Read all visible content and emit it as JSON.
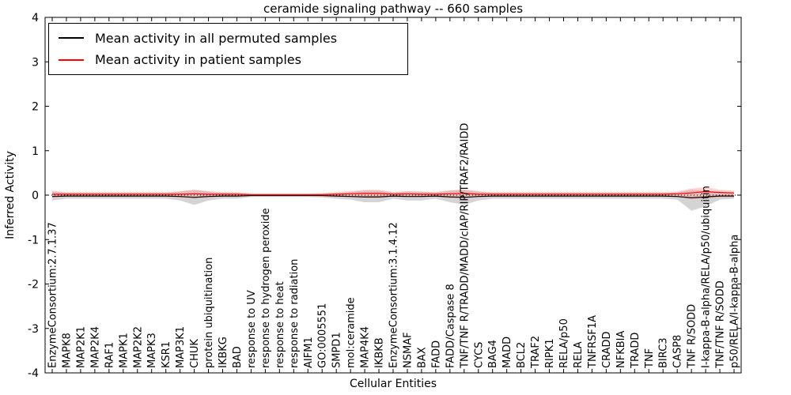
{
  "legend": [
    {
      "label": "Mean activity in all permuted samples",
      "color": "#000000"
    },
    {
      "label": "Mean activity in patient samples",
      "color": "#ff0000"
    }
  ],
  "chart_data": {
    "type": "line",
    "title": "ceramide signaling pathway -- 660 samples",
    "xlabel": "Cellular Entities",
    "ylabel": "Inferred Activity",
    "ylim": [
      -4,
      4
    ],
    "yticks": [
      4,
      3,
      2,
      1,
      0,
      -1,
      -2,
      -3,
      -4
    ],
    "grid": false,
    "legend_position": "upper-left",
    "categories": [
      "EnzymeConsortium:2.7.1.37",
      "MAPK8",
      "MAP2K1",
      "MAP2K4",
      "RAF1",
      "MAPK1",
      "MAP2K2",
      "MAPK3",
      "KSR1",
      "MAP3K1",
      "CHUK",
      "protein ubiquitination",
      "IKBKG",
      "BAD",
      "response to UV",
      "response to hydrogen peroxide",
      "response to heat",
      "response to radiation",
      "AIFM1",
      "GO:0005551",
      "SMPD1",
      "mol:ceramide",
      "MAP4K4",
      "IKBKB",
      "EnzymeConsortium:3.1.4.12",
      "NSMAF",
      "BAX",
      "FADD",
      "FADD/Caspase 8",
      "TNF/TNF R/TRADD/MADD/cIAP/RIP/TRAF2/RAIDD",
      "CYCS",
      "BAG4",
      "MADD",
      "BCL2",
      "TRAF2",
      "RIPK1",
      "RELA/p50",
      "RELA",
      "TNFRSF1A",
      "CRADD",
      "NFKBIA",
      "TRADD",
      "TNF",
      "BIRC3",
      "CASP8",
      "TNF R/SODD",
      "I-kappa-B-alpha/RELA/p50/ubiquitin",
      "TNF/TNF R/SODD",
      "p50/RELA/I-kappa-B-alpha"
    ],
    "series": [
      {
        "name": "Mean activity in all permuted samples",
        "color": "#000000",
        "values": [
          -0.03,
          -0.02,
          -0.02,
          -0.02,
          -0.02,
          -0.02,
          -0.02,
          -0.02,
          -0.02,
          -0.03,
          -0.05,
          -0.03,
          -0.02,
          -0.02,
          -0.01,
          -0.01,
          -0.01,
          -0.01,
          -0.01,
          -0.01,
          -0.02,
          -0.03,
          -0.04,
          -0.04,
          -0.02,
          -0.03,
          -0.03,
          -0.02,
          -0.04,
          -0.05,
          -0.03,
          -0.02,
          -0.02,
          -0.02,
          -0.02,
          -0.02,
          -0.02,
          -0.02,
          -0.02,
          -0.02,
          -0.02,
          -0.02,
          -0.02,
          -0.02,
          -0.03,
          -0.06,
          -0.04,
          -0.02,
          -0.02
        ]
      },
      {
        "name": "Mean activity in patient samples",
        "color": "#ff0000",
        "values": [
          0.02,
          0.02,
          0.02,
          0.02,
          0.02,
          0.02,
          0.02,
          0.02,
          0.02,
          0.02,
          0.03,
          0.02,
          0.02,
          0.02,
          0.01,
          0.01,
          0.01,
          0.01,
          0.01,
          0.01,
          0.02,
          0.03,
          0.04,
          0.04,
          0.02,
          0.03,
          0.02,
          0.02,
          0.03,
          0.04,
          0.02,
          0.02,
          0.02,
          0.02,
          0.02,
          0.02,
          0.02,
          0.02,
          0.02,
          0.02,
          0.02,
          0.02,
          0.02,
          0.02,
          0.03,
          0.05,
          0.08,
          0.06,
          0.05
        ]
      }
    ],
    "bands": [
      {
        "name": "permuted-variance",
        "color": "#aaaaaa",
        "opacity": 0.5,
        "upper": [
          0.08,
          0.05,
          0.05,
          0.05,
          0.05,
          0.05,
          0.05,
          0.05,
          0.05,
          0.08,
          0.12,
          0.08,
          0.05,
          0.05,
          0.03,
          0.03,
          0.03,
          0.03,
          0.03,
          0.04,
          0.05,
          0.07,
          0.1,
          0.1,
          0.06,
          0.08,
          0.08,
          0.06,
          0.1,
          0.12,
          0.08,
          0.05,
          0.05,
          0.05,
          0.05,
          0.05,
          0.05,
          0.05,
          0.05,
          0.05,
          0.05,
          0.05,
          0.05,
          0.05,
          0.06,
          0.12,
          0.1,
          0.06,
          0.05
        ],
        "lower": [
          -0.12,
          -0.08,
          -0.08,
          -0.08,
          -0.08,
          -0.08,
          -0.08,
          -0.08,
          -0.08,
          -0.12,
          -0.22,
          -0.12,
          -0.08,
          -0.08,
          -0.04,
          -0.04,
          -0.04,
          -0.04,
          -0.04,
          -0.05,
          -0.08,
          -0.1,
          -0.16,
          -0.16,
          -0.08,
          -0.12,
          -0.12,
          -0.08,
          -0.16,
          -0.22,
          -0.12,
          -0.08,
          -0.08,
          -0.08,
          -0.08,
          -0.08,
          -0.08,
          -0.08,
          -0.08,
          -0.08,
          -0.08,
          -0.08,
          -0.08,
          -0.08,
          -0.1,
          -0.35,
          -0.25,
          -0.1,
          -0.08
        ]
      },
      {
        "name": "patient-variance",
        "color": "#ff9999",
        "opacity": 0.45,
        "upper": [
          0.1,
          0.07,
          0.07,
          0.07,
          0.07,
          0.07,
          0.07,
          0.07,
          0.07,
          0.09,
          0.12,
          0.09,
          0.07,
          0.07,
          0.04,
          0.04,
          0.04,
          0.04,
          0.04,
          0.05,
          0.07,
          0.09,
          0.12,
          0.12,
          0.07,
          0.09,
          0.08,
          0.07,
          0.11,
          0.13,
          0.09,
          0.07,
          0.07,
          0.07,
          0.07,
          0.07,
          0.07,
          0.07,
          0.07,
          0.07,
          0.07,
          0.07,
          0.07,
          0.07,
          0.08,
          0.15,
          0.18,
          0.12,
          0.1
        ],
        "lower": [
          -0.06,
          -0.04,
          -0.04,
          -0.04,
          -0.04,
          -0.04,
          -0.04,
          -0.04,
          -0.04,
          -0.06,
          -0.08,
          -0.06,
          -0.04,
          -0.04,
          -0.02,
          -0.02,
          -0.02,
          -0.02,
          -0.02,
          -0.03,
          -0.04,
          -0.05,
          -0.07,
          -0.07,
          -0.04,
          -0.05,
          -0.05,
          -0.04,
          -0.07,
          -0.08,
          -0.05,
          -0.04,
          -0.04,
          -0.04,
          -0.04,
          -0.04,
          -0.04,
          -0.04,
          -0.04,
          -0.04,
          -0.04,
          -0.04,
          -0.04,
          -0.04,
          -0.05,
          -0.1,
          -0.08,
          -0.06,
          -0.05
        ]
      }
    ]
  }
}
